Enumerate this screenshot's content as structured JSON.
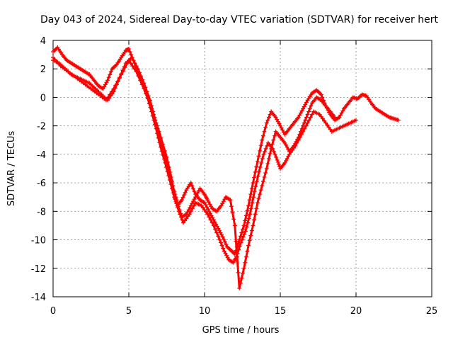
{
  "chart_data": {
    "type": "scatter",
    "title": "Day 043 of 2024, Sidereal Day-to-day VTEC variation (SDTVAR) for receiver hert",
    "xlabel": "GPS time / hours",
    "ylabel": "SDTVAR / TECUs",
    "xlim": [
      0,
      25
    ],
    "ylim": [
      -14,
      4
    ],
    "xticks": [
      0,
      5,
      10,
      15,
      20,
      25
    ],
    "yticks": [
      -14,
      -12,
      -10,
      -8,
      -6,
      -4,
      -2,
      0,
      2,
      4
    ],
    "grid": true,
    "marker": "+",
    "colors": {
      "series": "#ff0000",
      "grid": "#a0a0a0",
      "axes": "#000000"
    },
    "series": [
      {
        "x": [
          0.0,
          0.3,
          0.6,
          0.9,
          1.2,
          1.5,
          1.8,
          2.1,
          2.4,
          2.7,
          3.0,
          3.3,
          3.6,
          3.9,
          4.2,
          4.5,
          4.8,
          5.0,
          5.3,
          5.6,
          5.9,
          6.2,
          6.5,
          6.8,
          7.1,
          7.4,
          7.7,
          8.0,
          8.2,
          8.5,
          8.8,
          9.1,
          9.4,
          9.7,
          10.0,
          10.3,
          10.6,
          10.9,
          11.2,
          11.5,
          11.8,
          12.0,
          12.3,
          12.6,
          12.9,
          13.2,
          13.5,
          13.8,
          14.1,
          14.4,
          14.7,
          15.0,
          15.3,
          15.6,
          15.9,
          16.2,
          16.5,
          16.8,
          17.1,
          17.4,
          17.7,
          18.0,
          18.3,
          18.6,
          18.9,
          19.2,
          19.5,
          19.8,
          20.1,
          20.4,
          20.7,
          21.0,
          21.3,
          21.6,
          21.9,
          22.2,
          22.5,
          22.8
        ],
        "y": [
          3.2,
          3.5,
          3.0,
          2.6,
          2.4,
          2.2,
          2.0,
          1.8,
          1.6,
          1.2,
          0.8,
          0.6,
          1.2,
          2.0,
          2.3,
          2.8,
          3.3,
          3.4,
          2.6,
          1.8,
          1.0,
          0.2,
          -1.0,
          -2.2,
          -3.5,
          -4.6,
          -5.8,
          -7.0,
          -7.6,
          -7.2,
          -6.5,
          -6.0,
          -6.8,
          -7.2,
          -7.4,
          -8.0,
          -8.6,
          -9.2,
          -9.8,
          -10.5,
          -10.8,
          -11.0,
          -10.0,
          -9.0,
          -7.6,
          -6.0,
          -4.5,
          -3.0,
          -1.8,
          -1.0,
          -1.4,
          -2.0,
          -2.6,
          -2.2,
          -1.8,
          -1.4,
          -0.8,
          -0.2,
          0.3,
          0.5,
          0.2,
          -0.6,
          -1.2,
          -1.6,
          -1.4,
          -0.8,
          -0.4,
          0.0,
          -0.1,
          0.2,
          0.1,
          -0.4,
          -0.8,
          -1.0,
          -1.2,
          -1.4,
          -1.5,
          -1.6
        ]
      },
      {
        "x": [
          0.0,
          0.5,
          1.0,
          1.5,
          2.0,
          2.5,
          3.0,
          3.5,
          4.0,
          4.5,
          5.0,
          5.5,
          6.0,
          6.5,
          7.0,
          7.5,
          7.8,
          8.0,
          8.3,
          8.6,
          9.0,
          9.4,
          9.8,
          10.2,
          10.6,
          11.0,
          11.3,
          11.6,
          11.9,
          12.1,
          12.4,
          12.7,
          13.0,
          13.3,
          13.6,
          13.9,
          14.2,
          14.5,
          14.8,
          15.0,
          15.3,
          15.6,
          16.0,
          16.4,
          16.8,
          17.2,
          17.6,
          18.0,
          18.4,
          18.8,
          19.2,
          19.6,
          20.0
        ],
        "y": [
          2.8,
          2.2,
          1.8,
          1.4,
          1.0,
          0.6,
          0.2,
          -0.2,
          0.6,
          1.6,
          2.6,
          1.8,
          0.6,
          -0.8,
          -2.4,
          -4.2,
          -5.6,
          -6.8,
          -8.0,
          -8.8,
          -8.2,
          -7.4,
          -7.6,
          -8.2,
          -9.0,
          -10.0,
          -10.8,
          -11.4,
          -11.6,
          -11.2,
          -10.2,
          -9.4,
          -8.2,
          -6.6,
          -5.2,
          -4.0,
          -3.2,
          -3.6,
          -4.4,
          -5.0,
          -4.6,
          -4.0,
          -3.4,
          -2.6,
          -1.8,
          -1.0,
          -1.2,
          -1.8,
          -2.4,
          -2.2,
          -2.0,
          -1.8,
          -1.6
        ]
      },
      {
        "x": [
          0.0,
          0.4,
          0.8,
          1.2,
          1.6,
          2.0,
          2.4,
          2.8,
          3.2,
          3.6,
          4.0,
          4.4,
          4.8,
          5.2,
          5.6,
          6.0,
          6.4,
          6.8,
          7.2,
          7.6,
          8.0,
          8.2,
          8.5,
          8.8,
          9.1,
          9.4,
          9.7,
          10.0,
          10.2,
          10.5,
          10.8,
          11.1,
          11.4,
          11.7,
          12.0,
          12.3,
          12.6,
          12.9,
          13.2,
          13.5,
          13.8,
          14.1,
          14.4,
          14.7,
          15.0,
          15.3,
          15.6,
          15.9,
          16.2,
          16.5,
          16.8,
          17.1,
          17.4,
          17.7,
          18.0,
          18.3,
          18.6
        ],
        "y": [
          2.6,
          2.4,
          2.0,
          1.6,
          1.4,
          1.2,
          1.0,
          0.6,
          0.2,
          -0.2,
          0.4,
          1.4,
          2.4,
          2.8,
          2.0,
          1.0,
          -0.2,
          -1.8,
          -3.4,
          -5.0,
          -6.6,
          -7.4,
          -8.4,
          -8.2,
          -7.6,
          -7.0,
          -6.4,
          -6.8,
          -7.2,
          -7.8,
          -8.0,
          -7.6,
          -7.0,
          -7.2,
          -9.0,
          -13.4,
          -12.0,
          -10.4,
          -9.0,
          -7.4,
          -6.2,
          -5.0,
          -3.6,
          -2.4,
          -2.8,
          -3.2,
          -3.8,
          -3.4,
          -2.8,
          -2.0,
          -1.2,
          -0.4,
          0.0,
          -0.2,
          -0.6,
          -1.0,
          -1.4
        ]
      }
    ]
  }
}
